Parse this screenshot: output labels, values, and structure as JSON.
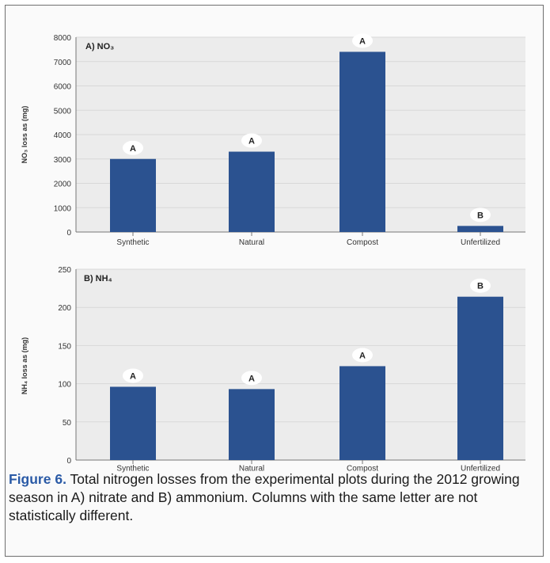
{
  "figure": {
    "label": "Figure 6.",
    "caption": " Total nitrogen losses from the experimental plots during the 2012 growing season in A) nitrate and B) ammonium. Columns with the same letter are not statistically different."
  },
  "colors": {
    "bar": "#2b5290",
    "plot_bg": "#ececec",
    "axis": "#777777"
  },
  "chart_data": [
    {
      "type": "bar",
      "panel_label": "A) NO₃",
      "ylabel": "NO₃ loss as (mg)",
      "categories": [
        "Synthetic",
        "Natural",
        "Compost",
        "Unfertilized"
      ],
      "values": [
        3000,
        3300,
        7400,
        250
      ],
      "letters": [
        "A",
        "A",
        "A",
        "B"
      ],
      "ylim": [
        0,
        8000
      ],
      "yticks": [
        0,
        1000,
        2000,
        3000,
        4000,
        5000,
        6000,
        7000,
        8000
      ],
      "ytick_labels": [
        "0",
        "1000",
        "2000",
        "3000",
        "4000",
        "5000",
        "6000",
        "7000",
        "8000"
      ],
      "grid": true
    },
    {
      "type": "bar",
      "panel_label": "B) NH₄",
      "ylabel": "NH₄ loss as (mg)",
      "categories": [
        "Synthetic",
        "Natural",
        "Compost",
        "Unfertilized"
      ],
      "values": [
        96,
        93,
        123,
        214
      ],
      "letters": [
        "A",
        "A",
        "A",
        "B"
      ],
      "ylim": [
        0,
        250
      ],
      "yticks": [
        0,
        50,
        100,
        150,
        200,
        250
      ],
      "ytick_labels": [
        "0",
        "50",
        "100",
        "150",
        "200",
        "250"
      ],
      "grid": true
    }
  ]
}
